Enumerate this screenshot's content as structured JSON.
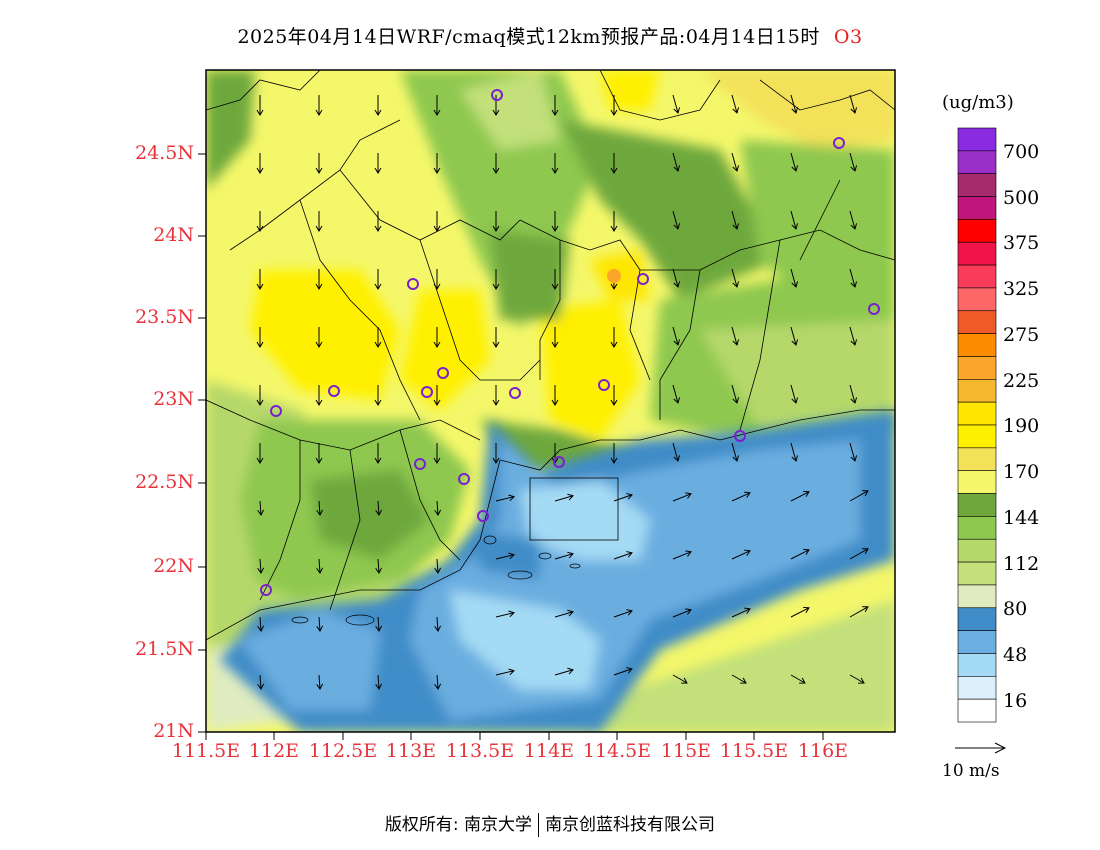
{
  "title": "2025年04月14日WRF/cmaq模式12km预报产品:04月14日15时",
  "pollutant": "O3",
  "units": "(ug/m3)",
  "lat_ticks": [
    "24.5N",
    "24N",
    "23.5N",
    "23N",
    "22.5N",
    "22N",
    "21.5N",
    "21N"
  ],
  "lon_ticks": [
    "111.5E",
    "112E",
    "112.5E",
    "113E",
    "113.5E",
    "114E",
    "114.5E",
    "115E",
    "115.5E",
    "116E"
  ],
  "colorbar": {
    "labels": [
      "700",
      "500",
      "375",
      "325",
      "275",
      "225",
      "190",
      "170",
      "144",
      "112",
      "80",
      "48",
      "16"
    ],
    "colors": [
      "#8a2be2",
      "#9b30c8",
      "#a52a6e",
      "#c0157a",
      "#ff0000",
      "#f0144a",
      "#fa3c5a",
      "#ff6666",
      "#ee5a28",
      "#ff8c00",
      "#fba52a",
      "#f5b72e",
      "#ffe600",
      "#fff000",
      "#f3e15a",
      "#f4f76a",
      "#6ea83c",
      "#8ec850",
      "#b6d86a",
      "#c3e07a",
      "#e0ecc0",
      "#3f8cc8",
      "#6baee0",
      "#a4daf4",
      "#dcf0fb",
      "#ffffff"
    ]
  },
  "wind_reference": "10 m/s",
  "footer": {
    "left": "版权所有: 南京大学",
    "right": "南京创蓝科技有限公司"
  },
  "stations_count": 18
}
